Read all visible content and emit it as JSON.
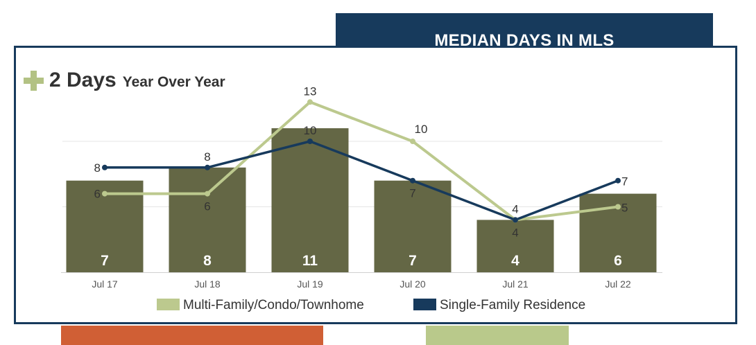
{
  "banner": {
    "title": "MEDIAN DAYS IN MLS"
  },
  "headline": {
    "value": "2 Days",
    "caption": "Year Over Year",
    "indicator": "plus-icon",
    "indicator_color": "#b3c284"
  },
  "colors": {
    "bar": "#646745",
    "multi_family": "#bcc98e",
    "single_family": "#173a5c",
    "frame": "#173a5c",
    "footer_left": "#d05f35",
    "footer_right": "#b9c98b"
  },
  "chart_data": {
    "type": "bar",
    "categories": [
      "Jul 17",
      "Jul 18",
      "Jul 19",
      "Jul 20",
      "Jul 21",
      "Jul 22"
    ],
    "values": [
      7,
      8,
      11,
      7,
      4,
      6
    ],
    "series": [
      {
        "name": "Multi-Family/Condo/Townhome",
        "type": "line",
        "values": [
          6,
          6,
          13,
          10,
          4,
          5
        ]
      },
      {
        "name": "Single-Family Residence",
        "type": "line",
        "values": [
          8,
          8,
          10,
          7,
          4,
          7
        ]
      }
    ],
    "ylim": [
      0,
      13.5
    ],
    "grid": true,
    "legend": "bottom",
    "xlabel": "",
    "ylabel": ""
  }
}
